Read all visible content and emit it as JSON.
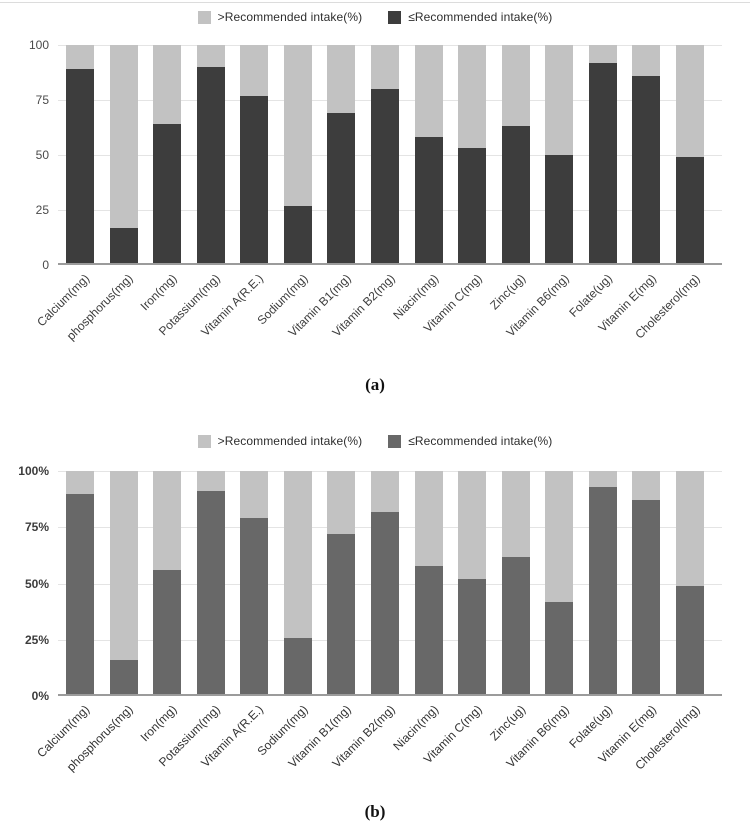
{
  "figure": {
    "captions": {
      "a": "(a)",
      "b": "(b)"
    }
  },
  "legend": {
    "over_label": ">Recommended intake(%)",
    "under_label": "≤Recommended intake(%)"
  },
  "chart_data": [
    {
      "id": "a",
      "type": "bar",
      "stacked": true,
      "caption": "(a)",
      "legend_position": "top",
      "grid": true,
      "ylim": [
        0,
        100
      ],
      "yticks": [
        "0",
        "25",
        "50",
        "75",
        "100"
      ],
      "ytick_positions": [
        0,
        25,
        50,
        75,
        100
      ],
      "xlabel": "",
      "ylabel": "",
      "categories": [
        "Calcium(mg)",
        "phosphorus(mg)",
        "Iron(mg)",
        "Potassium(mg)",
        "Vitamin A(R.E.)",
        "Sodium(mg)",
        "Vitamin B1(mg)",
        "Vitamin B2(mg)",
        "Niacin(mg)",
        "Vitamin C(mg)",
        "Zinc(ug)",
        "Vitamin B6(mg)",
        "Folate(ug)",
        "Vitamin E(mg)",
        "Cholesterol(mg)"
      ],
      "series": [
        {
          "name": "≤Recommended intake(%)",
          "values": [
            89,
            17,
            64,
            90,
            77,
            27,
            69,
            80,
            58,
            53,
            63,
            50,
            92,
            86,
            49
          ]
        },
        {
          "name": ">Recommended intake(%)",
          "values": [
            11,
            83,
            36,
            10,
            23,
            73,
            31,
            20,
            42,
            47,
            37,
            50,
            8,
            14,
            51
          ]
        }
      ],
      "colors": {
        "under": "#3d3d3d",
        "over": "#c2c2c2"
      }
    },
    {
      "id": "b",
      "type": "bar",
      "stacked": true,
      "caption": "(b)",
      "legend_position": "top",
      "grid": true,
      "ylim": [
        0,
        100
      ],
      "yticks": [
        "0%",
        "25%",
        "50%",
        "75%",
        "100%"
      ],
      "ytick_positions": [
        0,
        25,
        50,
        75,
        100
      ],
      "xlabel": "",
      "ylabel": "",
      "categories": [
        "Calcium(mg)",
        "phosphorus(mg)",
        "Iron(mg)",
        "Potassium(mg)",
        "Vitamin A(R.E.)",
        "Sodium(mg)",
        "Vitamin B1(mg)",
        "Vitamin B2(mg)",
        "Niacin(mg)",
        "Vitamin C(mg)",
        "Zinc(ug)",
        "Vitamin B6(mg)",
        "Folate(ug)",
        "Vitamin E(mg)",
        "Cholesterol(mg)"
      ],
      "series": [
        {
          "name": "≤Recommended intake(%)",
          "values": [
            90,
            16,
            56,
            91,
            79,
            26,
            72,
            82,
            58,
            52,
            62,
            42,
            93,
            87,
            49
          ]
        },
        {
          "name": ">Recommended intake(%)",
          "values": [
            10,
            84,
            44,
            9,
            21,
            74,
            28,
            18,
            42,
            48,
            38,
            58,
            7,
            13,
            51
          ]
        }
      ],
      "colors": {
        "under": "#686868",
        "over": "#c2c2c2"
      }
    }
  ]
}
